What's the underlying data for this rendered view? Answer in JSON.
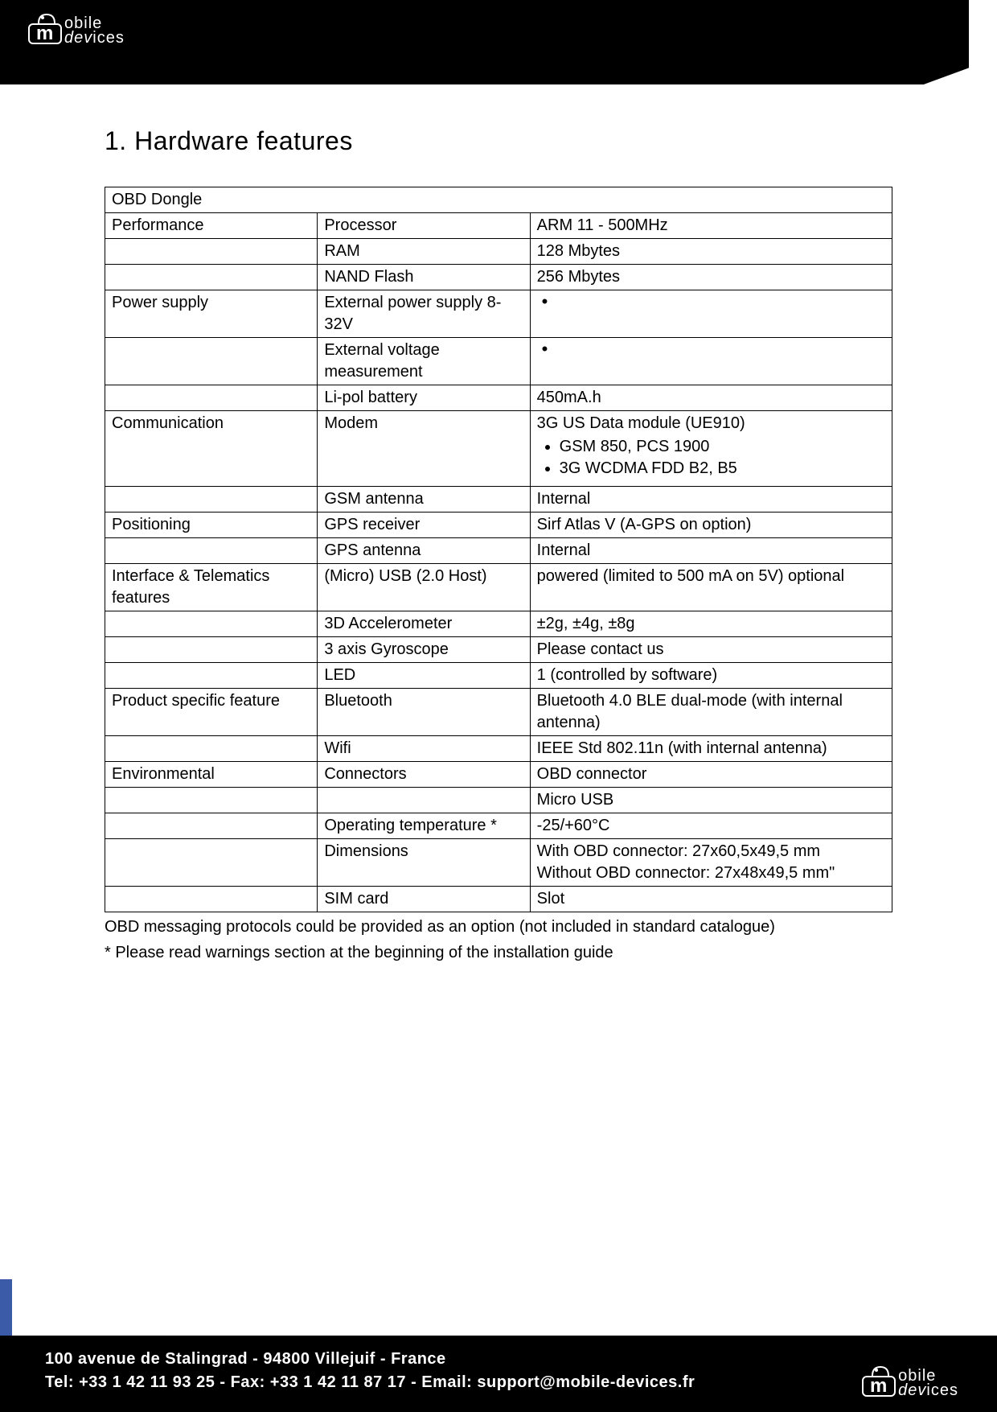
{
  "logo": {
    "line1": "obile",
    "line2_a": "dev",
    "line2_b": "ices"
  },
  "section_title": "1. Hardware features",
  "table_header": "OBD Dongle",
  "rows": [
    {
      "c1": "Performance",
      "c2": "Processor",
      "c3": "ARM 11 - 500MHz"
    },
    {
      "c1": "",
      "c2": "RAM",
      "c3": "128 Mbytes"
    },
    {
      "c1": "",
      "c2": "NAND Flash",
      "c3": "256 Mbytes"
    },
    {
      "c1": "Power supply",
      "c2": "External power supply 8-32V",
      "c3_bullet": true
    },
    {
      "c1": "",
      "c2": "External voltage measurement",
      "c3_bullet": true
    },
    {
      "c1": "",
      "c2": "Li-pol battery",
      "c3": "450mA.h"
    },
    {
      "c1": "Communication",
      "c2": "Modem",
      "c3_modem_head": "3G US Data module (UE910)",
      "c3_modem_items": [
        "GSM 850, PCS 1900",
        "3G WCDMA FDD B2, B5"
      ]
    },
    {
      "c1": "",
      "c2": "GSM antenna",
      "c3": "Internal"
    },
    {
      "c1": "Positioning",
      "c2": "GPS receiver",
      "c3": "Sirf Atlas V (A-GPS on option)"
    },
    {
      "c1": "",
      "c2": "GPS antenna",
      "c3": "Internal"
    },
    {
      "c1": "Interface & Telematics features",
      "c2": "(Micro) USB (2.0 Host)",
      "c3": "powered (limited to 500 mA on 5V) optional"
    },
    {
      "c1": "",
      "c2": "3D Accelerometer",
      "c3": "±2g, ±4g, ±8g"
    },
    {
      "c1": "",
      "c2": "3 axis Gyroscope",
      "c3": "Please contact us"
    },
    {
      "c1": "",
      "c2": "LED",
      "c3": "1 (controlled by software)"
    },
    {
      "c1": "Product specific feature",
      "c2": "Bluetooth",
      "c3": "Bluetooth 4.0 BLE dual-mode (with internal antenna)"
    },
    {
      "c1": "",
      "c2": "Wifi",
      "c3": "IEEE Std 802.11n (with internal antenna)"
    },
    {
      "c1": "Environmental",
      "c2": "Connectors",
      "c3": "OBD connector"
    },
    {
      "c1": "",
      "c2": "",
      "c3": "Micro USB"
    },
    {
      "c1": "",
      "c2": "Operating temperature *",
      "c3": "-25/+60°C"
    },
    {
      "c1": "",
      "c2": "Dimensions",
      "c3": "With OBD connector: 27x60,5x49,5 mm\nWithout OBD connector: 27x48x49,5 mm\""
    },
    {
      "c1": "",
      "c2": "SIM card",
      "c3": "Slot"
    }
  ],
  "note1": "OBD messaging protocols could be provided as an option (not included in standard catalogue)",
  "note2": "* Please read warnings section at the beginning of the installation guide",
  "footer": {
    "line1": "100 avenue de Stalingrad - 94800 Villejuif - France",
    "line2": "Tel: +33 1 42 11 93 25 - Fax: +33 1 42 11 87 17 - Email: support@mobile-devices.fr"
  }
}
